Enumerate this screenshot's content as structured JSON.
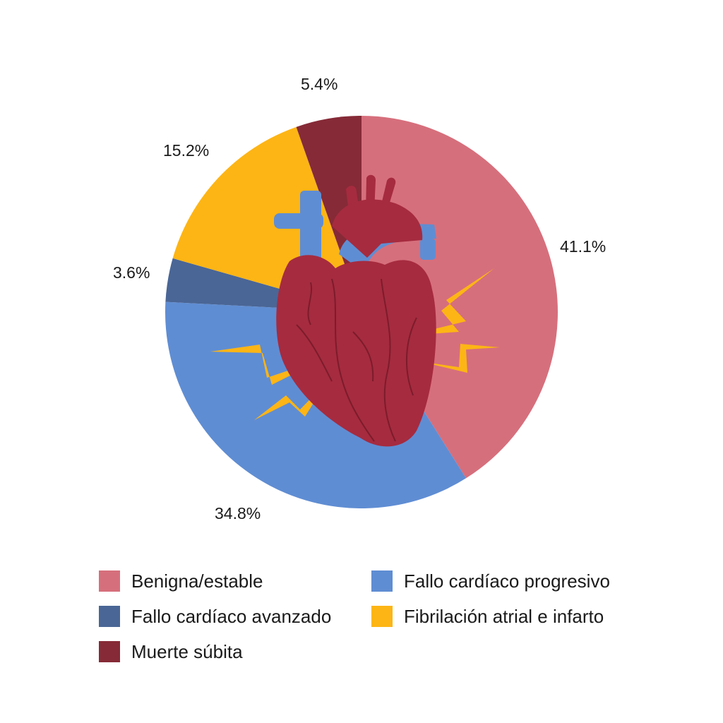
{
  "chart_data": {
    "type": "pie",
    "title": "",
    "start_angle_deg": 0,
    "direction": "clockwise",
    "slices": [
      {
        "label": "Benigna/estable",
        "value": 41.1,
        "value_label": "41.1%",
        "color": "#d66f7c"
      },
      {
        "label": "Fallo cardíaco progresivo",
        "value": 34.8,
        "value_label": "34.8%",
        "color": "#5f8dd3"
      },
      {
        "label": "Fallo cardíaco avanzado",
        "value": 3.6,
        "value_label": "3.6%",
        "color": "#4a6696"
      },
      {
        "label": "Fibrilación atrial e infarto",
        "value": 15.2,
        "value_label": "15.2%",
        "color": "#fdb515"
      },
      {
        "label": "Muerte súbita",
        "value": 5.4,
        "value_label": "5.4%",
        "color": "#862a37"
      }
    ],
    "legend": {
      "placement": "bottom",
      "entries": [
        {
          "label": "Benigna/estable",
          "color": "#d66f7c"
        },
        {
          "label": "Fallo cardíaco progresivo",
          "color": "#5f8dd3"
        },
        {
          "label": "Fallo cardíaco avanzado",
          "color": "#4a6696"
        },
        {
          "label": "Fibrilación atrial e infarto",
          "color": "#fdb515"
        },
        {
          "label": "Muerte súbita",
          "color": "#862a37"
        }
      ]
    },
    "center_illustration": "heart-icon"
  }
}
